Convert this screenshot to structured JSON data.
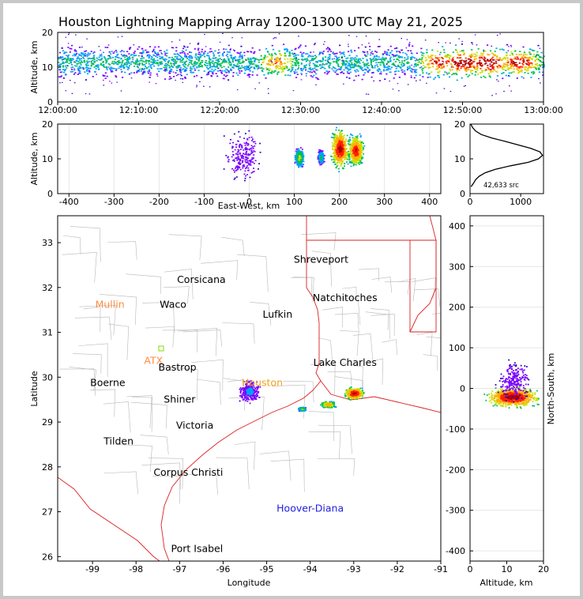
{
  "chart_data": [
    {
      "id": "time-altitude",
      "type": "heatmap",
      "title": "Houston Lightning Mapping Array 1200-1300 UTC May 21, 2025",
      "xlabel": "",
      "ylabel": "Altitude, km",
      "x_ticks": [
        "12:00:00",
        "12:10:00",
        "12:20:00",
        "12:30:00",
        "12:40:00",
        "12:50:00",
        "13:00:00"
      ],
      "y_ticks": [
        0,
        10,
        20
      ],
      "xlim_minutes": [
        0,
        60
      ],
      "ylim": [
        0,
        20
      ],
      "band": {
        "altitude_low_km": 6,
        "altitude_high_km": 17,
        "peak_altitude_km": 11.5
      },
      "density_peaks": [
        {
          "minute": 27,
          "intensity": 0.7
        },
        {
          "minute": 47,
          "intensity": 0.85
        },
        {
          "minute": 50,
          "intensity": 1.0
        },
        {
          "minute": 53,
          "intensity": 1.0
        },
        {
          "minute": 57,
          "intensity": 0.9
        }
      ]
    },
    {
      "id": "east-west-altitude",
      "type": "heatmap",
      "xlabel": "East-West, km",
      "ylabel": "Altitude, km",
      "x_ticks": [
        -400,
        -300,
        -200,
        -100,
        0,
        100,
        200,
        300,
        400
      ],
      "y_ticks": [
        0,
        10,
        20
      ],
      "xlim": [
        -425,
        425
      ],
      "ylim": [
        0,
        20
      ],
      "clusters": [
        {
          "x_center": -15,
          "x_halfwidth": 50,
          "alt_low": 2,
          "alt_high": 20,
          "intensity": 0.25
        },
        {
          "x_center": 110,
          "x_halfwidth": 12,
          "alt_low": 7,
          "alt_high": 14,
          "intensity": 0.6
        },
        {
          "x_center": 158,
          "x_halfwidth": 8,
          "alt_low": 8,
          "alt_high": 13,
          "intensity": 0.5
        },
        {
          "x_center": 200,
          "x_halfwidth": 25,
          "alt_low": 6,
          "alt_high": 20,
          "intensity": 1.0
        },
        {
          "x_center": 235,
          "x_halfwidth": 22,
          "alt_low": 7,
          "alt_high": 18,
          "intensity": 0.95
        }
      ]
    },
    {
      "id": "altitude-histogram",
      "type": "line",
      "xlabel": "",
      "ylabel": "",
      "x_ticks": [
        0,
        1000
      ],
      "y_ticks": [
        0,
        10,
        20
      ],
      "xlim": [
        0,
        1450
      ],
      "ylim": [
        0,
        20
      ],
      "annotation": "42,633 src",
      "x": [
        20,
        70,
        110,
        180,
        300,
        500,
        800,
        1150,
        1350,
        1430,
        1380,
        1200,
        950,
        700,
        430,
        220,
        110,
        50,
        15
      ],
      "y": [
        2,
        3,
        4,
        5,
        6,
        7,
        8,
        9,
        10,
        11,
        12,
        13,
        14,
        15,
        16,
        17,
        18,
        19,
        20
      ]
    },
    {
      "id": "plan-view-map",
      "type": "scatter",
      "xlabel": "Longitude",
      "ylabel": "Latitude",
      "x_ticks": [
        -99,
        -98,
        -97,
        -96,
        -95,
        -94,
        -93,
        -92,
        -91
      ],
      "y_ticks": [
        26,
        27,
        28,
        29,
        30,
        31,
        32,
        33
      ],
      "xlim": [
        -99.8,
        -91
      ],
      "ylim": [
        25.9,
        33.6
      ],
      "clusters": [
        {
          "lon": -95.4,
          "lat": 29.7,
          "spread_lon": 0.3,
          "spread_lat": 0.3,
          "intensity": 0.3
        },
        {
          "lon": -94.2,
          "lat": 29.3,
          "spread_lon": 0.1,
          "spread_lat": 0.05,
          "intensity": 0.6
        },
        {
          "lon": -93.6,
          "lat": 29.4,
          "spread_lon": 0.2,
          "spread_lat": 0.08,
          "intensity": 0.8
        },
        {
          "lon": -93.0,
          "lat": 29.65,
          "spread_lon": 0.25,
          "spread_lat": 0.15,
          "intensity": 1.0
        }
      ],
      "cities": [
        {
          "name": "Shreveport",
          "lon": -93.75,
          "lat": 32.55,
          "color": "#000000"
        },
        {
          "name": "Corsicana",
          "lon": -96.5,
          "lat": 32.1,
          "color": "#000000"
        },
        {
          "name": "Natchitoches",
          "lon": -93.2,
          "lat": 31.7,
          "color": "#000000"
        },
        {
          "name": "Mullin",
          "lon": -98.6,
          "lat": 31.55,
          "color": "#ff8c40"
        },
        {
          "name": "Waco",
          "lon": -97.15,
          "lat": 31.55,
          "color": "#000000"
        },
        {
          "name": "Lufkin",
          "lon": -94.75,
          "lat": 31.33,
          "color": "#000000"
        },
        {
          "name": "ATX",
          "lon": -97.6,
          "lat": 30.3,
          "color": "#ff8c40"
        },
        {
          "name": "Bastrop",
          "lon": -97.05,
          "lat": 30.15,
          "color": "#000000"
        },
        {
          "name": "Lake Charles",
          "lon": -93.2,
          "lat": 30.25,
          "color": "#000000"
        },
        {
          "name": "Boerne",
          "lon": -98.65,
          "lat": 29.8,
          "color": "#000000"
        },
        {
          "name": "Houston",
          "lon": -95.1,
          "lat": 29.8,
          "color": "#f0a020"
        },
        {
          "name": "Shiner",
          "lon": -97.0,
          "lat": 29.43,
          "color": "#000000"
        },
        {
          "name": "Victoria",
          "lon": -96.65,
          "lat": 28.85,
          "color": "#000000"
        },
        {
          "name": "Tilden",
          "lon": -98.4,
          "lat": 28.5,
          "color": "#000000"
        },
        {
          "name": "Corpus Christi",
          "lon": -96.8,
          "lat": 27.8,
          "color": "#000000"
        },
        {
          "name": "Hoover-Diana",
          "lon": -94.0,
          "lat": 27.0,
          "color": "#2020e0"
        },
        {
          "name": "Port Isabel",
          "lon": -96.6,
          "lat": 26.1,
          "color": "#000000"
        }
      ]
    },
    {
      "id": "altitude-north-south",
      "type": "heatmap",
      "xlabel": "Altitude, km",
      "ylabel": "North-South, km",
      "x_ticks": [
        0,
        10,
        20
      ],
      "y_ticks": [
        -400,
        -300,
        -200,
        -100,
        0,
        100,
        200,
        300,
        400
      ],
      "xlim": [
        0,
        20
      ],
      "ylim": [
        -425,
        425
      ],
      "clusters": [
        {
          "ns_center": -20,
          "ns_halfwidth": 30,
          "alt_low": 3,
          "alt_high": 20,
          "intensity": 1.0
        },
        {
          "ns_center": 20,
          "ns_halfwidth": 60,
          "alt_low": 6,
          "alt_high": 18,
          "intensity": 0.2
        }
      ]
    }
  ]
}
